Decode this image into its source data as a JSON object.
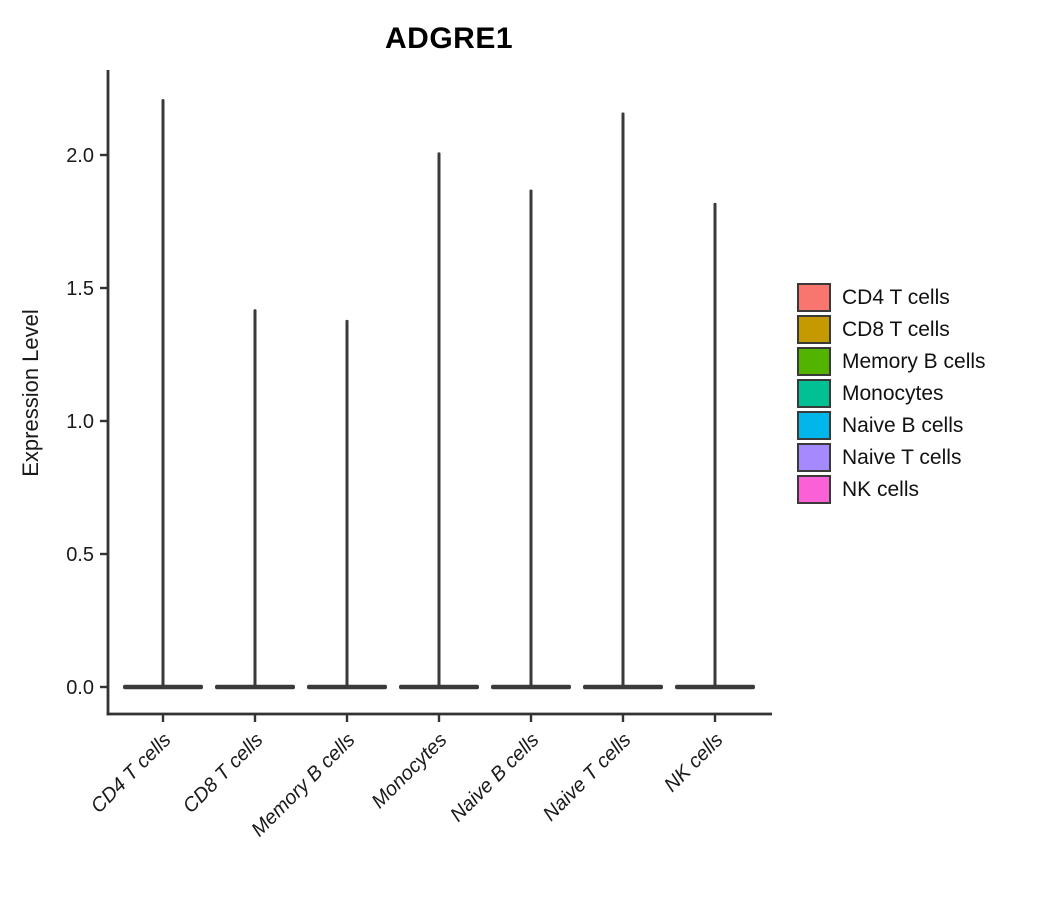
{
  "chart_data": {
    "type": "violin",
    "title": "ADGRE1",
    "ylabel": "Expression Level",
    "xlabel": "",
    "categories": [
      "CD4 T cells",
      "CD8 T cells",
      "Memory B cells",
      "Monocytes",
      "Naive B cells",
      "Naive T cells",
      "NK cells"
    ],
    "yticks": [
      {
        "value": 0.0,
        "label": "0.0"
      },
      {
        "value": 0.5,
        "label": "0.5"
      },
      {
        "value": 1.0,
        "label": "1.0"
      },
      {
        "value": 1.5,
        "label": "1.5"
      },
      {
        "value": 2.0,
        "label": "2.0"
      }
    ],
    "ylim": [
      -0.1,
      2.32
    ],
    "grid": false,
    "legend_position": "right",
    "axis_color": "#333333",
    "violin_outline_color": "#3a3a3a",
    "violins": [
      {
        "category": "CD4 T cells",
        "fill": "#F8766D",
        "baseline_expression": 0.0,
        "max_expression": 2.21
      },
      {
        "category": "CD8 T cells",
        "fill": "#C49A00",
        "baseline_expression": 0.0,
        "max_expression": 1.42
      },
      {
        "category": "Memory B cells",
        "fill": "#53B400",
        "baseline_expression": 0.0,
        "max_expression": 1.38
      },
      {
        "category": "Monocytes",
        "fill": "#00C094",
        "baseline_expression": 0.0,
        "max_expression": 2.01
      },
      {
        "category": "Naive B cells",
        "fill": "#00B6EB",
        "baseline_expression": 0.0,
        "max_expression": 1.87
      },
      {
        "category": "Naive T cells",
        "fill": "#A58AFF",
        "baseline_expression": 0.0,
        "max_expression": 2.16
      },
      {
        "category": "NK cells",
        "fill": "#FB61D7",
        "baseline_expression": 0.0,
        "max_expression": 1.82
      }
    ],
    "legend": [
      {
        "label": "CD4 T cells",
        "color": "#F8766D"
      },
      {
        "label": "CD8 T cells",
        "color": "#C49A00"
      },
      {
        "label": "Memory B cells",
        "color": "#53B400"
      },
      {
        "label": "Monocytes",
        "color": "#00C094"
      },
      {
        "label": "Naive B cells",
        "color": "#00B6EB"
      },
      {
        "label": "Naive T cells",
        "color": "#A58AFF"
      },
      {
        "label": "NK cells",
        "color": "#FB61D7"
      }
    ]
  }
}
